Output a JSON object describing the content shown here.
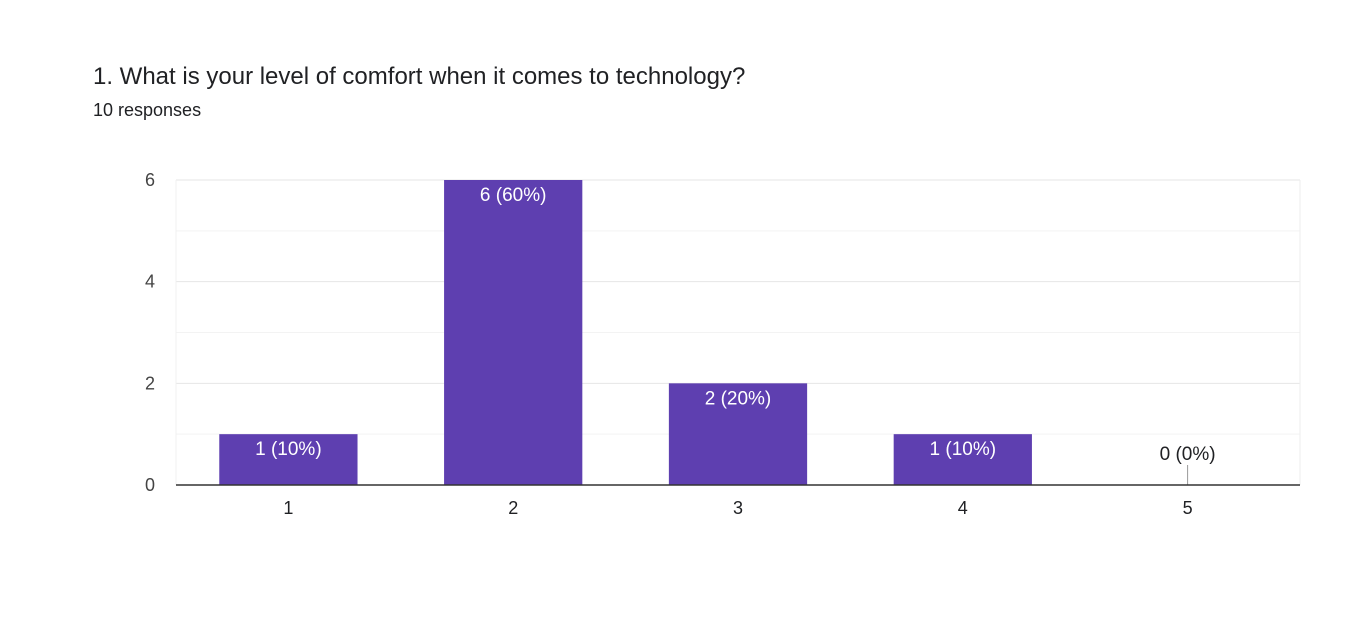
{
  "question": {
    "title": "1. What is your level of comfort when it comes to technology?",
    "responses": "10 responses"
  },
  "chart_data": {
    "type": "bar",
    "categories": [
      "1",
      "2",
      "3",
      "4",
      "5"
    ],
    "values": [
      1,
      6,
      2,
      1,
      0
    ],
    "bar_labels": [
      "1 (10%)",
      "6 (60%)",
      "2 (20%)",
      "1 (10%)",
      "0 (0%)"
    ],
    "y_ticks": [
      "0",
      "2",
      "4",
      "6"
    ],
    "ylim": [
      0,
      6
    ],
    "grid": true,
    "legend": "none",
    "bar_color": "#5e3fb0",
    "bar_label_color": "#ffffff",
    "empty_label_color": "#202124"
  }
}
